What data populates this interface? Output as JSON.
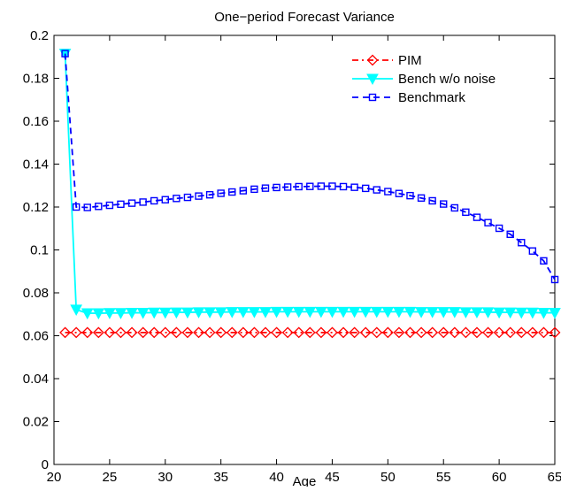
{
  "chart_data": {
    "type": "line",
    "title": "One−period Forecast Variance",
    "xlabel": "Age",
    "ylabel": "",
    "xlim": [
      20,
      65
    ],
    "ylim": [
      0,
      0.2
    ],
    "x_ticks": [
      20,
      25,
      30,
      35,
      40,
      45,
      50,
      55,
      60,
      65
    ],
    "y_ticks": [
      0,
      0.02,
      0.04,
      0.06,
      0.08,
      0.1,
      0.12,
      0.14,
      0.16,
      0.18,
      0.2
    ],
    "x_tick_labels": [
      "20",
      "25",
      "30",
      "35",
      "40",
      "45",
      "50",
      "55",
      "60",
      "65"
    ],
    "y_tick_labels": [
      "0",
      "0.02",
      "0.04",
      "0.06",
      "0.08",
      "0.1",
      "0.12",
      "0.14",
      "0.16",
      "0.18",
      "0.2"
    ],
    "grid": false,
    "legend_position": "top-right",
    "x": [
      21,
      22,
      23,
      24,
      25,
      26,
      27,
      28,
      29,
      30,
      31,
      32,
      33,
      34,
      35,
      36,
      37,
      38,
      39,
      40,
      41,
      42,
      43,
      44,
      45,
      46,
      47,
      48,
      49,
      50,
      51,
      52,
      53,
      54,
      55,
      56,
      57,
      58,
      59,
      60,
      61,
      62,
      63,
      64,
      65
    ],
    "series": [
      {
        "name": "PIM",
        "color": "#ff0000",
        "line_style": "dash-dot",
        "marker": "diamond",
        "values": [
          0.0615,
          0.0615,
          0.0615,
          0.0615,
          0.0615,
          0.0615,
          0.0615,
          0.0615,
          0.0615,
          0.0615,
          0.0615,
          0.0615,
          0.0615,
          0.0615,
          0.0615,
          0.0615,
          0.0615,
          0.0615,
          0.0615,
          0.0615,
          0.0615,
          0.0615,
          0.0615,
          0.0615,
          0.0615,
          0.0615,
          0.0615,
          0.0615,
          0.0615,
          0.0615,
          0.0615,
          0.0615,
          0.0615,
          0.0615,
          0.0615,
          0.0615,
          0.0615,
          0.0615,
          0.0615,
          0.0615,
          0.0615,
          0.0615,
          0.0615,
          0.0615,
          0.0615
        ]
      },
      {
        "name": "Bench w/o noise",
        "color": "#00ffff",
        "line_style": "solid",
        "marker": "triangle-down",
        "values": [
          0.1915,
          0.0722,
          0.0705,
          0.0705,
          0.0706,
          0.0706,
          0.0707,
          0.0707,
          0.0708,
          0.0708,
          0.0709,
          0.0709,
          0.071,
          0.071,
          0.071,
          0.0711,
          0.0711,
          0.0711,
          0.0711,
          0.0712,
          0.0712,
          0.0712,
          0.0712,
          0.0712,
          0.0712,
          0.0712,
          0.0712,
          0.0712,
          0.0712,
          0.0712,
          0.0712,
          0.0712,
          0.0711,
          0.0711,
          0.0711,
          0.0711,
          0.071,
          0.071,
          0.071,
          0.0709,
          0.0709,
          0.0708,
          0.0708,
          0.0707,
          0.0707
        ]
      },
      {
        "name": "Benchmark",
        "color": "#0000ff",
        "line_style": "dashed",
        "marker": "square",
        "values": [
          0.1915,
          0.12,
          0.1198,
          0.1203,
          0.1208,
          0.1213,
          0.1218,
          0.1223,
          0.1229,
          0.1234,
          0.124,
          0.1245,
          0.1251,
          0.1257,
          0.1264,
          0.127,
          0.1276,
          0.1283,
          0.1288,
          0.1291,
          0.1293,
          0.1295,
          0.1296,
          0.1297,
          0.1297,
          0.1295,
          0.1292,
          0.1287,
          0.128,
          0.1272,
          0.1263,
          0.1253,
          0.1242,
          0.1229,
          0.1214,
          0.1196,
          0.1176,
          0.1152,
          0.1127,
          0.1101,
          0.1073,
          0.1034,
          0.0995,
          0.0949,
          0.0862
        ]
      }
    ]
  }
}
